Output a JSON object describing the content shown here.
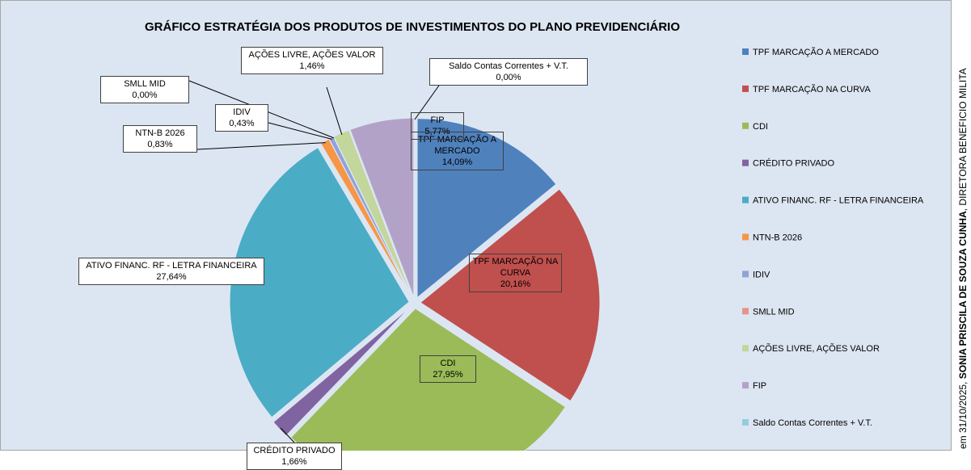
{
  "chart_data": {
    "type": "pie",
    "title": "GRÁFICO ESTRATÉGIA DOS PRODUTOS DE INVESTIMENTOS DO PLANO PREVIDENCIÁRIO",
    "categories": [
      "TPF MARCAÇÃO A MERCADO",
      "TPF MARCAÇÃO NA CURVA",
      "CDI",
      "CRÉDITO PRIVADO",
      "ATIVO FINANC. RF - LETRA FINANCEIRA",
      "NTN-B 2026",
      "IDIV",
      "SMLL MID",
      "AÇÕES LIVRE, AÇÕES VALOR",
      "FIP",
      "Saldo Contas Correntes + V.T."
    ],
    "values": [
      14.09,
      20.16,
      27.95,
      1.66,
      27.64,
      0.83,
      0.43,
      0.0,
      1.46,
      5.77,
      0.0
    ],
    "value_labels": [
      "14,09%",
      "20,16%",
      "27,95%",
      "1,66%",
      "27,64%",
      "0,83%",
      "0,43%",
      "0,00%",
      "1,46%",
      "5,77%",
      "0,00%"
    ],
    "colors": [
      "#4f81bd",
      "#c0504d",
      "#9bbb59",
      "#8064a2",
      "#4bacc6",
      "#f79646",
      "#8fa3d8",
      "#e8928e",
      "#c3d69b",
      "#b3a2c7",
      "#93cddd"
    ],
    "legend": "right"
  },
  "side_text": [
    "em 31/10/2025, ",
    "SONIA PRISCILA DE SOUZA CUNHA",
    ", DIRETORA BENEFICIO MILITA"
  ]
}
